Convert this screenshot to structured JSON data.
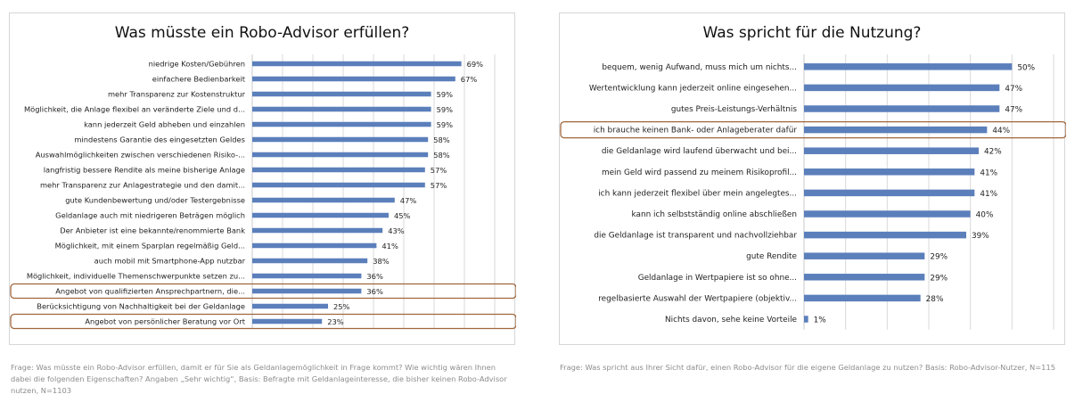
{
  "colors": {
    "bar": "#5b7fbb",
    "highlight": "#a0663c",
    "grid": "#d9d9d9",
    "axis": "#c8c8c8"
  },
  "captions": {
    "left": "Frage: Was müsste ein Robo-Advisor erfüllen, damit er für Sie als Geldanlagemöglichkeit in Frage kommt? Wie wichtig wären Ihnen dabei die folgenden Eigenschaften? Angaben „Sehr wichtig“, Basis: Befragte mit Geldanlageinteresse, die bisher keinen Robo-Advisor nutzen, N=1103",
    "right": "Frage: Was spricht aus Ihrer Sicht dafür, einen Robo-Advisor für die eigene Geldanlage zu nutzen? Basis: Robo-Advisor-Nutzer, N=115"
  },
  "chart_data": [
    {
      "type": "bar",
      "orientation": "horizontal",
      "title": "Was müsste ein Robo-Advisor erfüllen?",
      "xlim": [
        0,
        80
      ],
      "grid": true,
      "categories": [
        "niedrige Kosten/Gebühren",
        "einfachere Bedienbarkeit",
        "mehr Transparenz zur Kostenstruktur",
        "Möglichkeit, die Anlage flexibel an veränderte Ziele und d...",
        "kann jederzeit Geld abheben und einzahlen",
        "mindestens Garantie des eingesetzten Geldes",
        "Auswahlmöglichkeiten zwischen verschiedenen Risiko-...",
        "langfristig bessere Rendite als meine bisherige Anlage",
        "mehr Transparenz zur Anlagestrategie und den damit...",
        "gute Kundenbewertung und/oder Testergebnisse",
        "Geldanlage auch mit niedrigeren Beträgen möglich",
        "Der Anbieter ist eine bekannte/renommierte Bank",
        "Möglichkeit, mit einem Sparplan regelmäßig Geld...",
        "auch mobil mit Smartphone-App nutzbar",
        "Möglichkeit, individuelle Themenschwerpunkte setzen zu...",
        "Angebot von qualifizierten Ansprechpartnern, die...",
        "Berücksichtigung von Nachhaltigkeit bei der Geldanlage",
        "Angebot von persönlicher Beratung vor Ort"
      ],
      "values": [
        69,
        67,
        59,
        59,
        59,
        58,
        58,
        57,
        57,
        47,
        45,
        43,
        41,
        38,
        36,
        36,
        25,
        23
      ],
      "data_labels": [
        "69%",
        "67%",
        "59%",
        "59%",
        "59%",
        "58%",
        "58%",
        "57%",
        "57%",
        "47%",
        "45%",
        "43%",
        "41%",
        "38%",
        "36%",
        "36%",
        "25%",
        "23%"
      ],
      "highlighted": [
        15,
        17
      ]
    },
    {
      "type": "bar",
      "orientation": "horizontal",
      "title": "Was spricht für die Nutzung?",
      "xlim": [
        0,
        60
      ],
      "grid": true,
      "categories": [
        "bequem, wenig Aufwand, muss mich um nichts...",
        "Wertentwicklung kann jederzeit online eingesehen...",
        "gutes Preis-Leistungs-Verhältnis",
        "ich brauche keinen Bank- oder Anlageberater dafür",
        "die Geldanlage wird laufend überwacht und bei...",
        "mein Geld wird passend zu meinem Risikoprofil...",
        "ich kann jederzeit flexibel über mein angelegtes...",
        "kann ich selbstständig online abschließen",
        "die Geldanlage ist transparent und nachvollziehbar",
        "gute Rendite",
        "Geldanlage in Wertpapiere ist so ohne...",
        "regelbasierte Auswahl der Wertpapiere (objektiv...",
        "Nichts davon, sehe keine Vorteile"
      ],
      "values": [
        50,
        47,
        47,
        44,
        42,
        41,
        41,
        40,
        39,
        29,
        29,
        28,
        1
      ],
      "data_labels": [
        "50%",
        "47%",
        "47%",
        "44%",
        "42%",
        "41%",
        "41%",
        "40%",
        "39%",
        "29%",
        "29%",
        "28%",
        "1%"
      ],
      "highlighted": [
        3
      ]
    }
  ]
}
